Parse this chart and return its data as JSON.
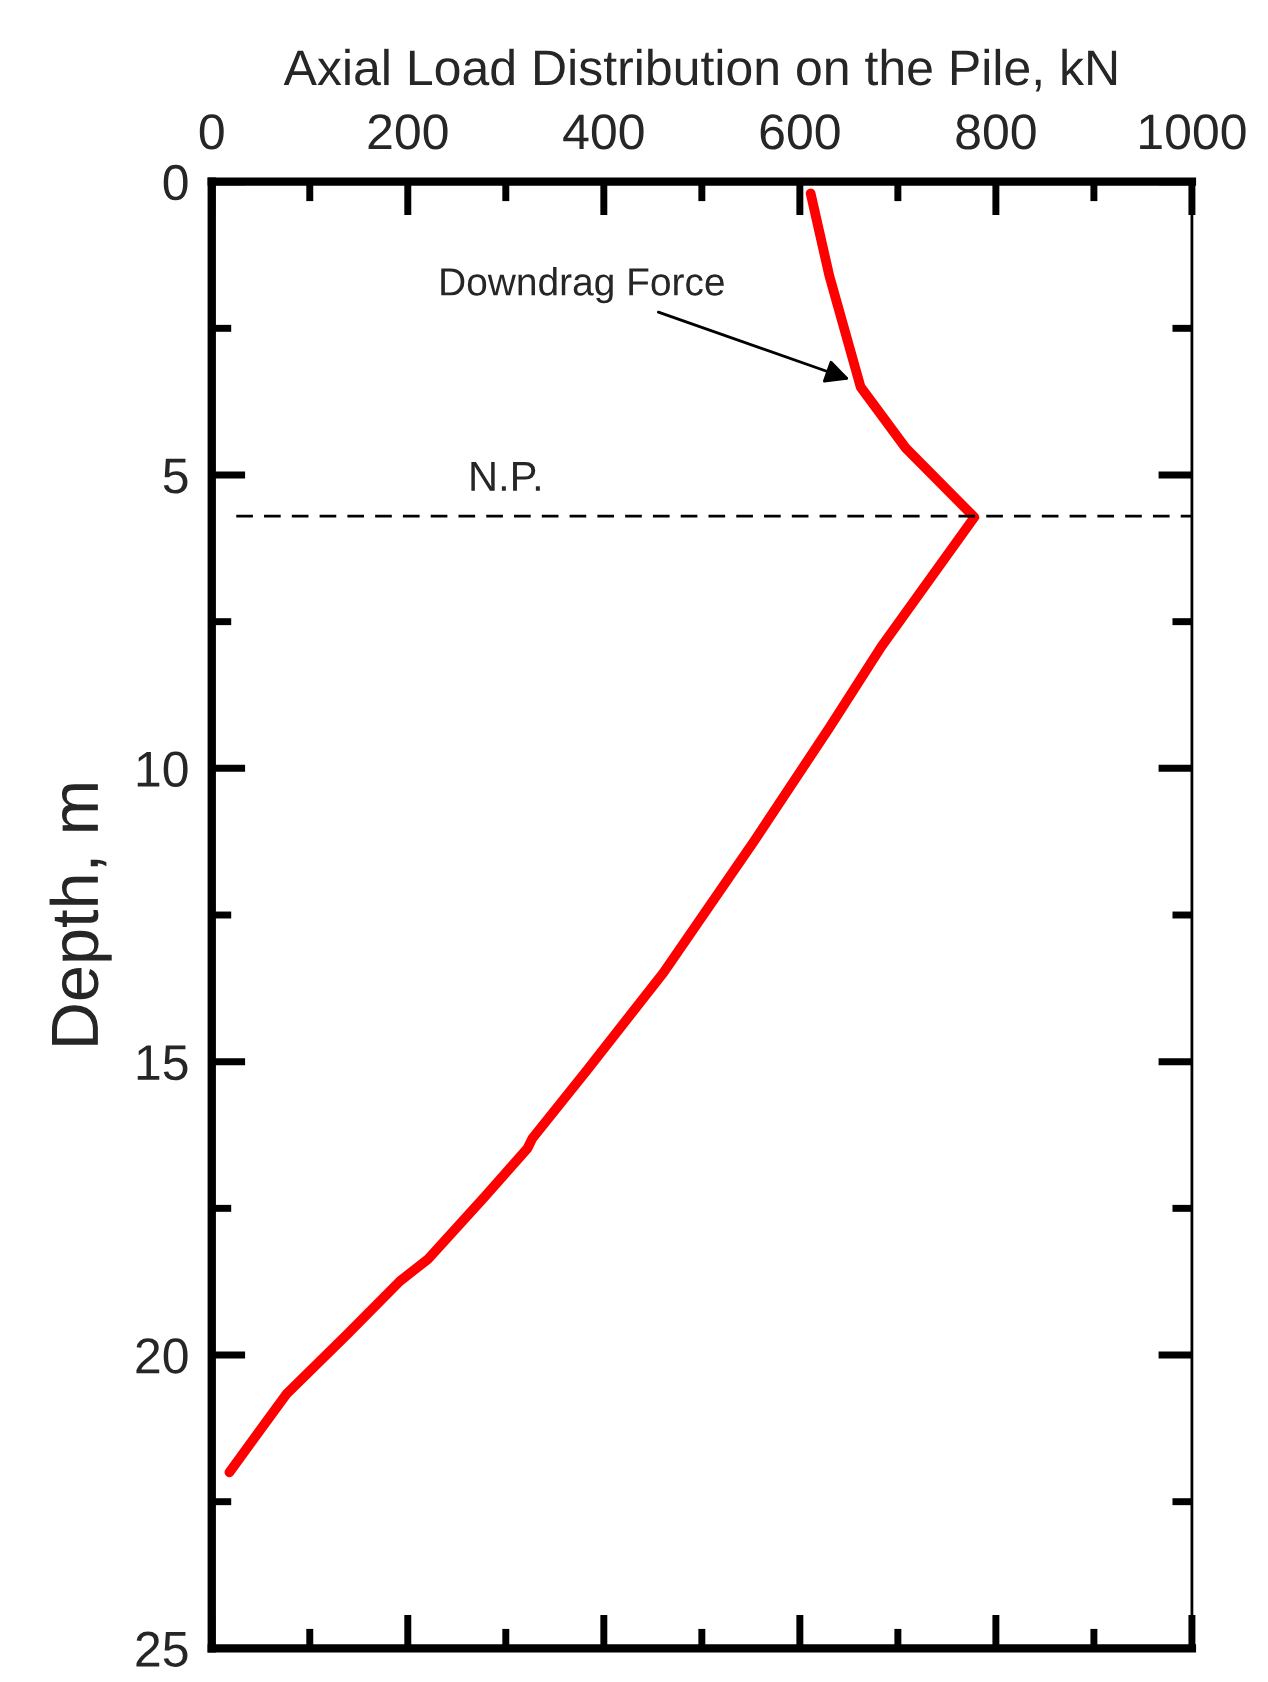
{
  "chart_data": {
    "type": "line",
    "xlabel": "Axial Load Distribution on the Pile, kN",
    "ylabel": "Depth, m",
    "series": [
      {
        "color": "#ff0000",
        "x": [
          611,
          630,
          662,
          708,
          778,
          683,
          630,
          553,
          461,
          383,
          327,
          322,
          278,
          221,
          192,
          138,
          76,
          18
        ],
        "values": [
          0.2,
          1.6,
          3.5,
          4.54,
          5.72,
          7.93,
          9.31,
          11.25,
          13.48,
          15.14,
          16.31,
          16.48,
          17.31,
          18.36,
          18.74,
          19.65,
          20.67,
          22.0
        ]
      }
    ],
    "xlim": [
      0,
      1000
    ],
    "xticks": [
      0,
      {
        "value": 100,
        "label": null
      },
      200,
      {
        "value": 300,
        "label": null
      },
      400,
      {
        "value": 500,
        "label": null
      },
      600,
      {
        "value": 700,
        "label": null
      },
      800,
      {
        "value": 900,
        "label": null
      },
      1000
    ],
    "ylim": [
      25,
      0
    ],
    "yticks": [
      0,
      {
        "value": 2.5,
        "label": null
      },
      5,
      {
        "value": 7.5,
        "label": null
      },
      10,
      {
        "value": 12.5,
        "label": null
      },
      15,
      {
        "value": 17.5,
        "label": null
      },
      20,
      {
        "value": 22.5,
        "label": null
      },
      25
    ],
    "ref_lines": [
      {
        "axis": "y",
        "value": 5.7,
        "label": "N.P.",
        "color": "#000000",
        "line_style": "dashed"
      }
    ],
    "annotations": [
      {
        "text": "Downdrag Force",
        "x": 656,
        "y": 3.4
      }
    ],
    "grid": false,
    "legend": false,
    "marker": "none",
    "line_style": "solid"
  }
}
